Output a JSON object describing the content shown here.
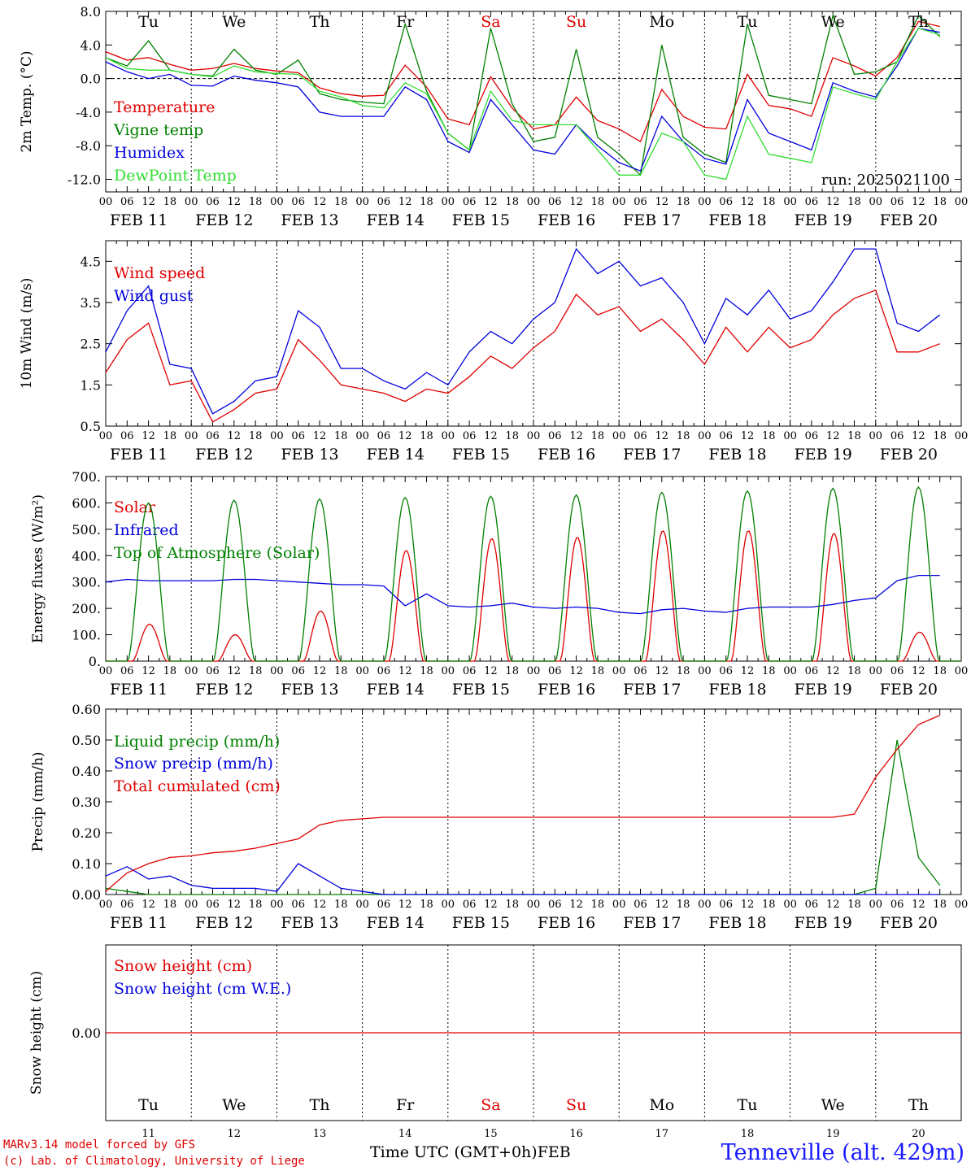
{
  "colors": {
    "red": "#e00000",
    "green": "#008000",
    "blue": "#0000dd",
    "lightgreen": "#33dd33"
  },
  "days": {
    "tick_labels": [
      "00",
      "06",
      "12",
      "18"
    ],
    "dates": [
      "FEB 11",
      "FEB 12",
      "FEB 13",
      "FEB 14",
      "FEB 15",
      "FEB 16",
      "FEB 17",
      "FEB 18",
      "FEB 19",
      "FEB 20"
    ],
    "weekdays": [
      "Tu",
      "We",
      "Th",
      "Fr",
      "Sa",
      "Su",
      "Mo",
      "Tu",
      "We",
      "Th"
    ],
    "weekday_colors": [
      "#000000",
      "#000000",
      "#000000",
      "#000000",
      "#e00000",
      "#e00000",
      "#000000",
      "#000000",
      "#000000",
      "#000000"
    ],
    "day_numbers": [
      "11",
      "12",
      "13",
      "14",
      "15",
      "16",
      "17",
      "18",
      "19",
      "20"
    ]
  },
  "chart_data": [
    {
      "type": "line",
      "ylabel": "2m Temp. (°C)",
      "ylim": [
        -13.5,
        8.0
      ],
      "yticks": [
        "8.0",
        "4.0",
        "0.0",
        "-4.0",
        "-8.0",
        "-12.0"
      ],
      "ytick_values": [
        8,
        4,
        0,
        -4,
        -8,
        -12
      ],
      "annotation": "run: 2025021100",
      "x_hours": [
        0,
        6,
        12,
        18,
        24,
        30,
        36,
        42,
        48,
        54,
        60,
        66,
        72,
        78,
        84,
        90,
        96,
        102,
        108,
        114,
        120,
        126,
        132,
        138,
        144,
        150,
        156,
        162,
        168,
        174,
        180,
        186,
        192,
        198,
        204,
        210,
        216,
        222,
        228,
        234
      ],
      "series": [
        {
          "name": "Temperature",
          "color": "#e00000",
          "values": [
            3.2,
            2.2,
            2.5,
            1.7,
            1.0,
            1.2,
            1.8,
            1.2,
            0.9,
            0.7,
            -1.1,
            -1.8,
            -2.1,
            -2.0,
            1.6,
            -1.0,
            -4.8,
            -5.5,
            0.2,
            -3.5,
            -6.0,
            -5.5,
            -2.2,
            -5.0,
            -6.0,
            -7.5,
            -1.3,
            -4.5,
            -5.8,
            -6.0,
            0.5,
            -3.2,
            -3.6,
            -4.5,
            2.5,
            1.5,
            0.3,
            2.5,
            6.8,
            6.2
          ]
        },
        {
          "name": "Vigne temp",
          "color": "#008000",
          "values": [
            2.5,
            1.5,
            4.5,
            1.0,
            0.5,
            0.3,
            3.5,
            1.0,
            0.5,
            2.2,
            -1.8,
            -2.5,
            -2.8,
            -3.0,
            6.5,
            -1.5,
            -6.5,
            -8.5,
            6.0,
            -3.0,
            -7.5,
            -7.0,
            3.5,
            -7.0,
            -9.0,
            -11.5,
            4.0,
            -7.0,
            -9.0,
            -10.0,
            6.5,
            -2.0,
            -2.5,
            -3.0,
            7.5,
            0.5,
            0.8,
            2.0,
            7.5,
            5.0
          ]
        },
        {
          "name": "Humidex",
          "color": "#0000dd",
          "values": [
            2.0,
            0.8,
            0.0,
            0.5,
            -0.8,
            -0.9,
            0.3,
            -0.2,
            -0.5,
            -1.0,
            -4.0,
            -4.5,
            -4.5,
            -4.5,
            -1.0,
            -2.5,
            -7.5,
            -8.8,
            -2.5,
            -5.5,
            -8.5,
            -9.0,
            -5.5,
            -8.0,
            -10.0,
            -11.0,
            -4.5,
            -7.5,
            -9.5,
            -10.2,
            -2.5,
            -6.5,
            -7.5,
            -8.5,
            -0.5,
            -1.5,
            -2.2,
            1.5,
            6.0,
            5.5
          ]
        },
        {
          "name": "DewPoint Temp",
          "color": "#33dd33",
          "values": [
            2.5,
            1.2,
            1.0,
            1.0,
            0.5,
            0.2,
            1.5,
            0.8,
            0.6,
            0.5,
            -1.5,
            -2.2,
            -3.2,
            -3.5,
            -0.5,
            -1.8,
            -6.5,
            -8.5,
            -1.5,
            -5.0,
            -5.5,
            -5.5,
            -5.5,
            -8.5,
            -11.5,
            -11.5,
            -6.5,
            -7.5,
            -11.5,
            -12.0,
            -4.5,
            -9.0,
            -9.5,
            -10.0,
            -1.0,
            -1.8,
            -2.5,
            2.0,
            6.0,
            5.2
          ]
        }
      ]
    },
    {
      "type": "line",
      "ylabel": "10m Wind (m/s)",
      "ylim": [
        0.5,
        5.0
      ],
      "yticks": [
        "4.5",
        "3.5",
        "2.5",
        "1.5",
        "0.5"
      ],
      "ytick_values": [
        4.5,
        3.5,
        2.5,
        1.5,
        0.5
      ],
      "x_hours": [
        0,
        6,
        12,
        18,
        24,
        30,
        36,
        42,
        48,
        54,
        60,
        66,
        72,
        78,
        84,
        90,
        96,
        102,
        108,
        114,
        120,
        126,
        132,
        138,
        144,
        150,
        156,
        162,
        168,
        174,
        180,
        186,
        192,
        198,
        204,
        210,
        216,
        222,
        228,
        234
      ],
      "series": [
        {
          "name": "Wind speed",
          "color": "#e00000",
          "values": [
            1.8,
            2.6,
            3.0,
            1.5,
            1.6,
            0.6,
            0.9,
            1.3,
            1.4,
            2.6,
            2.1,
            1.5,
            1.4,
            1.3,
            1.1,
            1.4,
            1.3,
            1.7,
            2.2,
            1.9,
            2.4,
            2.8,
            3.7,
            3.2,
            3.4,
            2.8,
            3.1,
            2.6,
            2.0,
            2.9,
            2.3,
            2.9,
            2.4,
            2.6,
            3.2,
            3.6,
            3.8,
            2.3,
            2.3,
            2.5
          ]
        },
        {
          "name": "Wind gust",
          "color": "#0000dd",
          "values": [
            2.3,
            3.3,
            3.9,
            2.0,
            1.9,
            0.8,
            1.1,
            1.6,
            1.7,
            3.3,
            2.9,
            1.9,
            1.9,
            1.6,
            1.4,
            1.8,
            1.5,
            2.3,
            2.8,
            2.5,
            3.1,
            3.5,
            4.8,
            4.2,
            4.5,
            3.9,
            4.1,
            3.5,
            2.5,
            3.6,
            3.2,
            3.8,
            3.1,
            3.3,
            4.0,
            4.8,
            4.8,
            3.0,
            2.8,
            3.2
          ]
        }
      ]
    },
    {
      "type": "line",
      "ylabel": "Energy fluxes (W/m²)",
      "ylim": [
        0,
        700
      ],
      "yticks": [
        "700.",
        "600.",
        "500.",
        "400.",
        "300.",
        "200.",
        "100.",
        "0."
      ],
      "ytick_values": [
        700,
        600,
        500,
        400,
        300,
        200,
        100,
        0
      ],
      "daily_peaks": {
        "toa": [
          600,
          610,
          615,
          620,
          625,
          630,
          640,
          645,
          655,
          660
        ],
        "solar": [
          140,
          100,
          190,
          420,
          465,
          470,
          495,
          495,
          485,
          110
        ]
      },
      "x_hours": [
        0,
        6,
        12,
        18,
        24,
        30,
        36,
        42,
        48,
        54,
        60,
        66,
        72,
        78,
        84,
        90,
        96,
        102,
        108,
        114,
        120,
        126,
        132,
        138,
        144,
        150,
        156,
        162,
        168,
        174,
        180,
        186,
        192,
        198,
        204,
        210,
        216,
        222,
        228,
        234
      ],
      "series": [
        {
          "name": "Solar",
          "color": "#e00000",
          "values": []
        },
        {
          "name": "Infrared",
          "color": "#0000dd",
          "values": [
            300,
            310,
            305,
            305,
            305,
            305,
            310,
            310,
            305,
            300,
            295,
            290,
            290,
            285,
            210,
            255,
            210,
            205,
            210,
            220,
            205,
            200,
            205,
            200,
            185,
            180,
            195,
            200,
            190,
            185,
            200,
            205,
            205,
            205,
            215,
            230,
            240,
            305,
            325,
            325
          ]
        },
        {
          "name": "Top of Atmosphere (Solar)",
          "color": "#008000",
          "values": []
        }
      ]
    },
    {
      "type": "line",
      "ylabel": "Precip (mm/h)",
      "ylim": [
        0,
        0.6
      ],
      "yticks": [
        "0.60",
        "0.50",
        "0.40",
        "0.30",
        "0.20",
        "0.10",
        "0.00"
      ],
      "ytick_values": [
        0.6,
        0.5,
        0.4,
        0.3,
        0.2,
        0.1,
        0.0
      ],
      "x_hours": [
        0,
        6,
        12,
        18,
        24,
        30,
        36,
        42,
        48,
        54,
        60,
        66,
        72,
        78,
        84,
        90,
        96,
        102,
        108,
        114,
        120,
        126,
        132,
        138,
        144,
        150,
        156,
        162,
        168,
        174,
        180,
        186,
        192,
        198,
        204,
        210,
        216,
        222,
        228,
        234
      ],
      "series": [
        {
          "name": "Liquid precip (mm/h)",
          "color": "#008000",
          "values": [
            0.02,
            0.01,
            0,
            0,
            0,
            0,
            0,
            0,
            0,
            0,
            0,
            0,
            0,
            0,
            0,
            0,
            0,
            0,
            0,
            0,
            0,
            0,
            0,
            0,
            0,
            0,
            0,
            0,
            0,
            0,
            0,
            0,
            0,
            0,
            0,
            0,
            0.02,
            0.5,
            0.12,
            0.03
          ]
        },
        {
          "name": "Snow precip (mm/h)",
          "color": "#0000dd",
          "values": [
            0.06,
            0.09,
            0.05,
            0.06,
            0.03,
            0.02,
            0.02,
            0.02,
            0.01,
            0.1,
            0.06,
            0.02,
            0.01,
            0,
            0,
            0,
            0,
            0,
            0,
            0,
            0,
            0,
            0,
            0,
            0,
            0,
            0,
            0,
            0,
            0,
            0,
            0,
            0,
            0,
            0,
            0,
            0,
            0,
            0,
            0
          ]
        },
        {
          "name": "Total cumulated (cm)",
          "color": "#e00000",
          "values": [
            0.01,
            0.07,
            0.1,
            0.12,
            0.125,
            0.135,
            0.14,
            0.15,
            0.165,
            0.18,
            0.225,
            0.24,
            0.245,
            0.25,
            0.25,
            0.25,
            0.25,
            0.25,
            0.25,
            0.25,
            0.25,
            0.25,
            0.25,
            0.25,
            0.25,
            0.25,
            0.25,
            0.25,
            0.25,
            0.25,
            0.25,
            0.25,
            0.25,
            0.25,
            0.25,
            0.26,
            0.38,
            0.47,
            0.55,
            0.58
          ]
        }
      ]
    },
    {
      "type": "line",
      "ylabel": "Snow height (cm)",
      "ylim": [
        -1,
        1
      ],
      "yticks": [
        "0.00"
      ],
      "ytick_values": [
        0
      ],
      "x_hours": [
        0,
        240
      ],
      "series": [
        {
          "name": "Snow height (cm)",
          "color": "#e00000",
          "values": [
            0,
            0
          ]
        },
        {
          "name": "Snow height (cm W.E.)",
          "color": "#0000dd",
          "values": [
            0,
            0
          ]
        }
      ]
    }
  ],
  "footer": {
    "model_line1": "MARv3.14 model forced by GFS",
    "model_line2": "(c) Lab. of Climatology, University of Liege",
    "xlabel": "Time UTC (GMT+0h)",
    "month": "FEB",
    "station": "Tenneville (alt. 429m)"
  }
}
